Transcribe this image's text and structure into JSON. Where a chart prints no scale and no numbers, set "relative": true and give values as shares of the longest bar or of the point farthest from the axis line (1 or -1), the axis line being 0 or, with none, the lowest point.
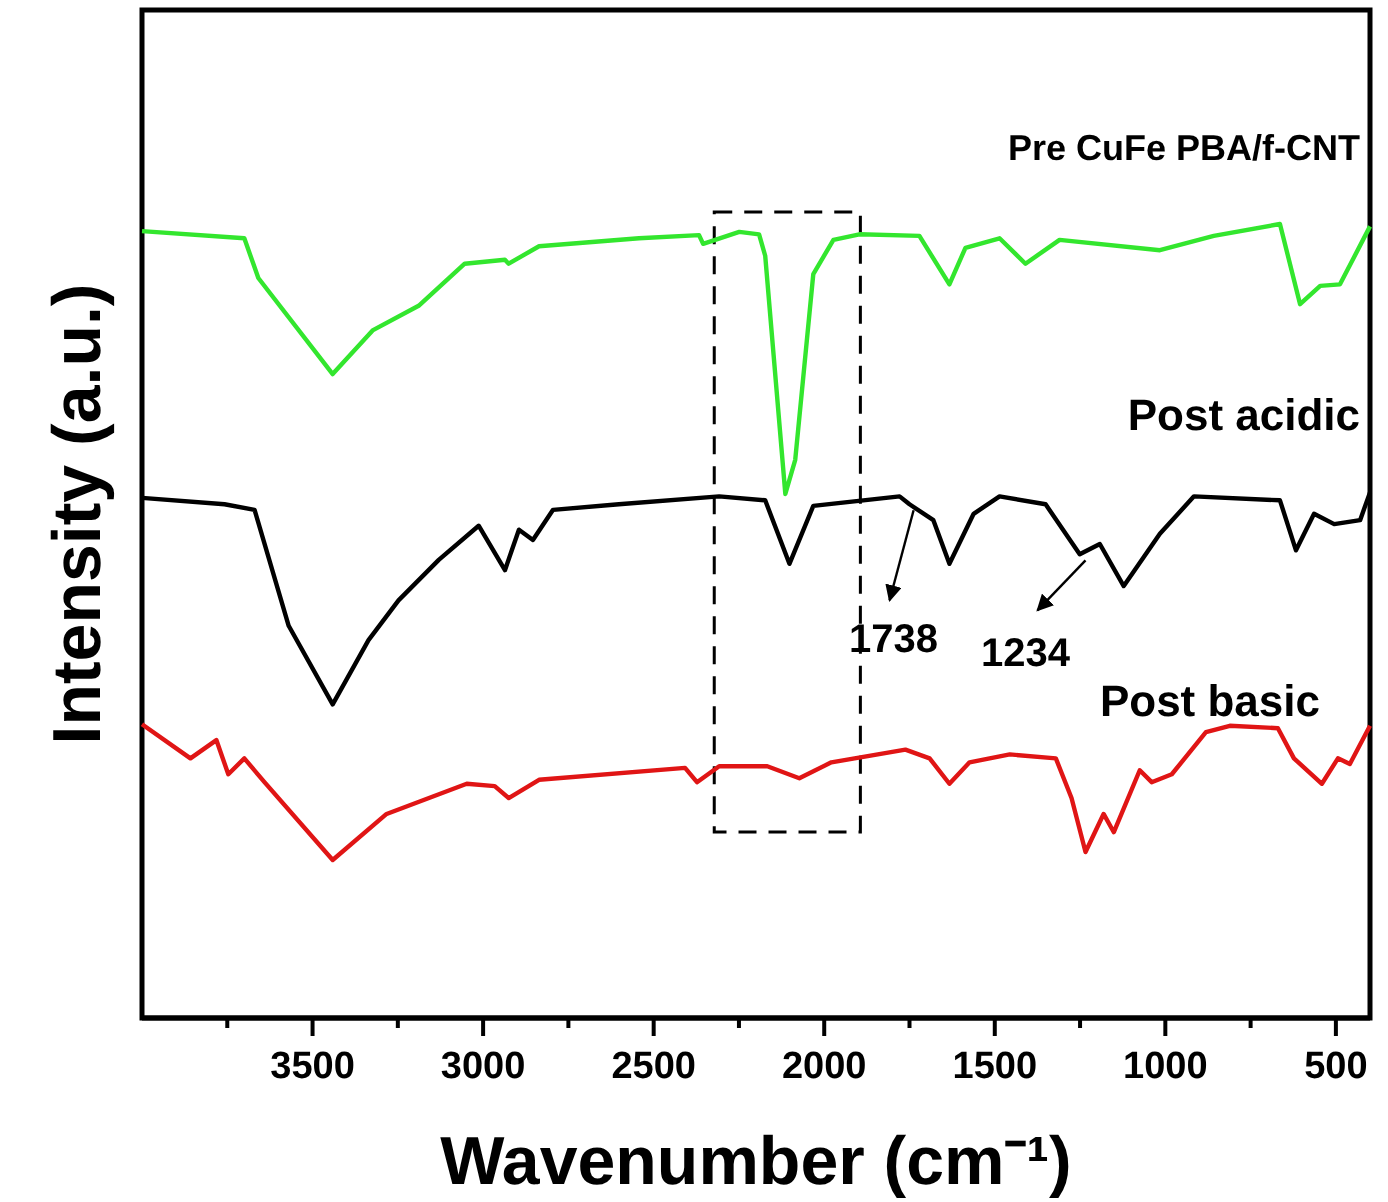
{
  "chart_data": {
    "type": "line",
    "relative": true,
    "xlabel": "Wavenumber (cm⁻¹)",
    "ylabel": "Intensity (a.u.)",
    "xlim": [
      4000,
      400
    ],
    "xticks": [
      {
        "value": 3750,
        "label": null
      },
      3500,
      {
        "value": 3250,
        "label": null
      },
      3000,
      {
        "value": 2750,
        "label": null
      },
      2500,
      {
        "value": 2250,
        "label": null
      },
      2000,
      {
        "value": 1750,
        "label": null
      },
      1500,
      {
        "value": 1250,
        "label": null
      },
      1000,
      {
        "value": 750,
        "label": null
      },
      500
    ],
    "grid": false,
    "marker": "none",
    "line_style": "solid",
    "annotations": [
      {
        "text": "1738",
        "x": 1738,
        "y": 0.647
      },
      {
        "text": "1234",
        "x": 1234,
        "y": 0.584
      }
    ],
    "series": [
      {
        "name": "Pre CuFe PBA/f-CNT",
        "color": "#33e62e",
        "x": [
          4000,
          3700,
          3659,
          3441,
          3324,
          3189,
          3054,
          2936,
          2925,
          2836,
          2543,
          2367,
          2355,
          2249,
          2191,
          2173,
          2114,
          2085,
          2032,
          1973,
          1897,
          1721,
          1633,
          1586,
          1486,
          1410,
          1310,
          1016,
          858,
          664,
          605,
          546,
          488,
          400
        ],
        "values": [
          0.991,
          0.982,
          0.932,
          0.811,
          0.866,
          0.897,
          0.95,
          0.955,
          0.95,
          0.972,
          0.982,
          0.986,
          0.975,
          0.99,
          0.987,
          0.96,
          0.66,
          0.703,
          0.937,
          0.98,
          0.987,
          0.985,
          0.924,
          0.97,
          0.982,
          0.95,
          0.98,
          0.967,
          0.985,
          1.0,
          0.899,
          0.922,
          0.924,
          0.997
        ]
      },
      {
        "name": "Post acidic",
        "color": "#000000",
        "x": [
          4000,
          3758,
          3670,
          3570,
          3441,
          3336,
          3248,
          3130,
          3013,
          2936,
          2895,
          2854,
          2795,
          2602,
          2308,
          2173,
          2102,
          2032,
          1779,
          1750,
          1680,
          1633,
          1562,
          1486,
          1351,
          1251,
          1192,
          1122,
          1016,
          916,
          664,
          617,
          564,
          505,
          429,
          400
        ],
        "values": [
          0.655,
          0.647,
          0.64,
          0.494,
          0.395,
          0.476,
          0.526,
          0.577,
          0.62,
          0.564,
          0.615,
          0.602,
          0.64,
          0.647,
          0.657,
          0.652,
          0.572,
          0.645,
          0.657,
          0.647,
          0.627,
          0.572,
          0.635,
          0.657,
          0.647,
          0.584,
          0.597,
          0.544,
          0.61,
          0.657,
          0.652,
          0.589,
          0.635,
          0.622,
          0.627,
          0.662
        ]
      },
      {
        "name": "Post basic",
        "color": "#e01515",
        "x": [
          4000,
          3858,
          3782,
          3747,
          3700,
          3641,
          3441,
          3283,
          3048,
          2966,
          2925,
          2836,
          2408,
          2373,
          2308,
          2167,
          2073,
          1979,
          1762,
          1691,
          1633,
          1574,
          1456,
          1321,
          1275,
          1234,
          1181,
          1151,
          1075,
          1040,
          981,
          881,
          811,
          670,
          623,
          541,
          494,
          459,
          400
        ],
        "values": [
          0.37,
          0.327,
          0.35,
          0.307,
          0.327,
          0.297,
          0.199,
          0.257,
          0.295,
          0.292,
          0.277,
          0.3,
          0.315,
          0.297,
          0.317,
          0.317,
          0.302,
          0.322,
          0.338,
          0.327,
          0.295,
          0.322,
          0.332,
          0.327,
          0.277,
          0.209,
          0.257,
          0.234,
          0.312,
          0.297,
          0.307,
          0.36,
          0.368,
          0.365,
          0.327,
          0.295,
          0.327,
          0.32,
          0.368
        ]
      }
    ]
  }
}
